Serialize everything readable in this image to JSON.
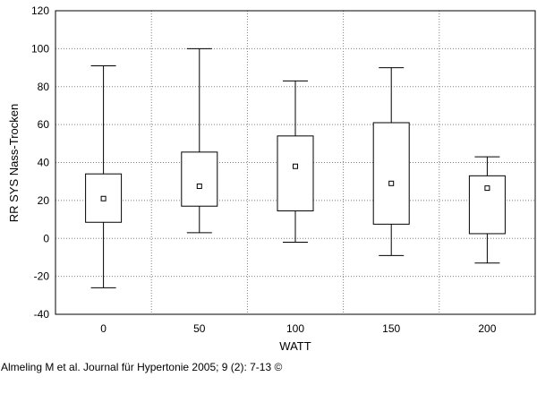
{
  "chart_data": {
    "type": "box",
    "categories": [
      "0",
      "50",
      "100",
      "150",
      "200"
    ],
    "series": [
      {
        "stats": [
          {
            "min": -26,
            "q1": 8.5,
            "q3": 34,
            "max": 91,
            "mean": 21
          },
          {
            "min": 3,
            "q1": 17,
            "q3": 45.5,
            "max": 100,
            "mean": 27.5
          },
          {
            "min": -2,
            "q1": 14.5,
            "q3": 54,
            "max": 83,
            "mean": 38
          },
          {
            "min": -9,
            "q1": 7.5,
            "q3": 61,
            "max": 90,
            "mean": 29
          },
          {
            "min": -13,
            "q1": 2.5,
            "q3": 33,
            "max": 43,
            "mean": 26.5
          }
        ]
      }
    ],
    "xlabel": "WATT",
    "ylabel": "RR SYS Nass-Trocken",
    "ylim": [
      -40,
      120
    ],
    "yticks": [
      "120",
      "100",
      "80",
      "60",
      "40",
      "20",
      "0",
      "-20",
      "-40"
    ],
    "grid": true,
    "colors": {
      "box": "#000000",
      "grid": "#808080",
      "background": "#ffffff"
    }
  },
  "citation": "Almeling M et al. Journal für Hypertonie 2005; 9 (2): 7-13 ©"
}
